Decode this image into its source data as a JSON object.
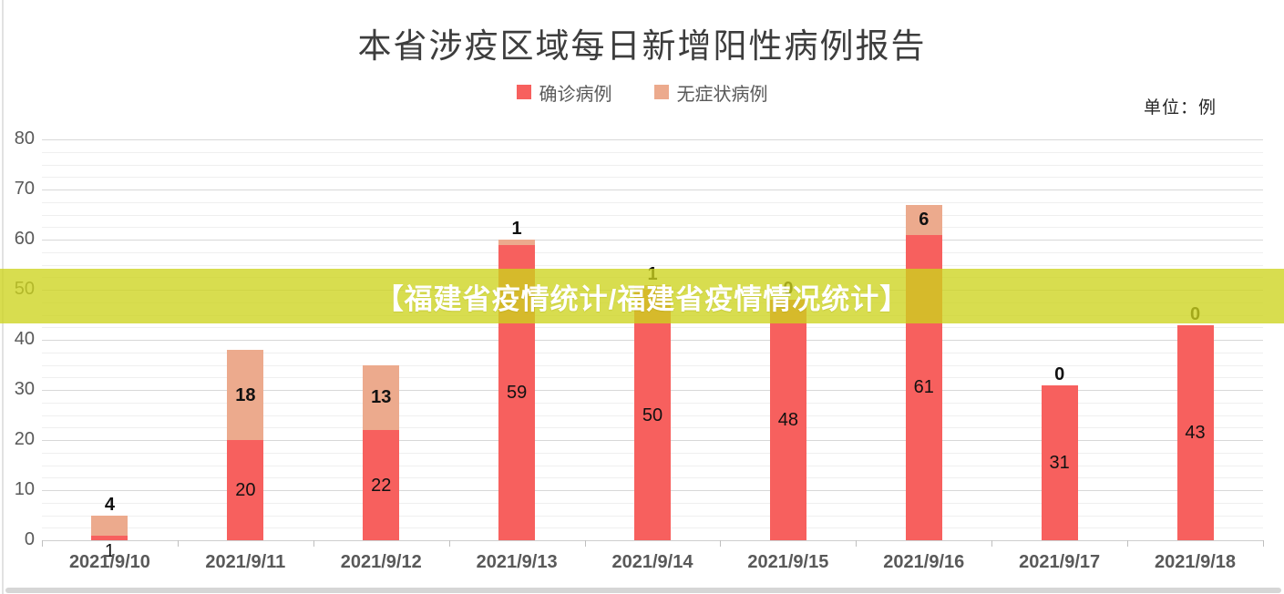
{
  "chart_data": {
    "type": "bar",
    "stacked": true,
    "title": "本省涉疫区域每日新增阳性病例报告",
    "unit_label": "单位：例",
    "grid": true,
    "legend_position": "top",
    "categories": [
      "2021/9/10",
      "2021/9/11",
      "2021/9/12",
      "2021/9/13",
      "2021/9/14",
      "2021/9/15",
      "2021/9/16",
      "2021/9/17",
      "2021/9/18"
    ],
    "series": [
      {
        "name": "确诊病例",
        "color": "#f7605e",
        "values": [
          1,
          20,
          22,
          59,
          50,
          48,
          61,
          31,
          43
        ]
      },
      {
        "name": "无症状病例",
        "color": "#ecaa8d",
        "values": [
          4,
          18,
          13,
          1,
          1,
          0,
          6,
          0,
          0
        ],
        "labels_hidden_by_banner": [
          4,
          5
        ]
      }
    ],
    "ylim": [
      0,
      80
    ],
    "yticks": [
      0,
      10,
      20,
      30,
      40,
      50,
      60,
      70,
      80
    ],
    "minor_tick_step": 2.5
  },
  "banner": {
    "text": "【福建省疫情统计/福建省疫情情况统计】",
    "band_color": "#d3d945",
    "text_color": "#ffffff"
  },
  "colors": {
    "confirmed": "#f7605e",
    "asymptomatic": "#ecaa8d",
    "grid_major": "#d8d8d8",
    "grid_minor": "#efefef",
    "axis_text": "#595959",
    "label_text": "#111111",
    "background": "#ffffff"
  }
}
